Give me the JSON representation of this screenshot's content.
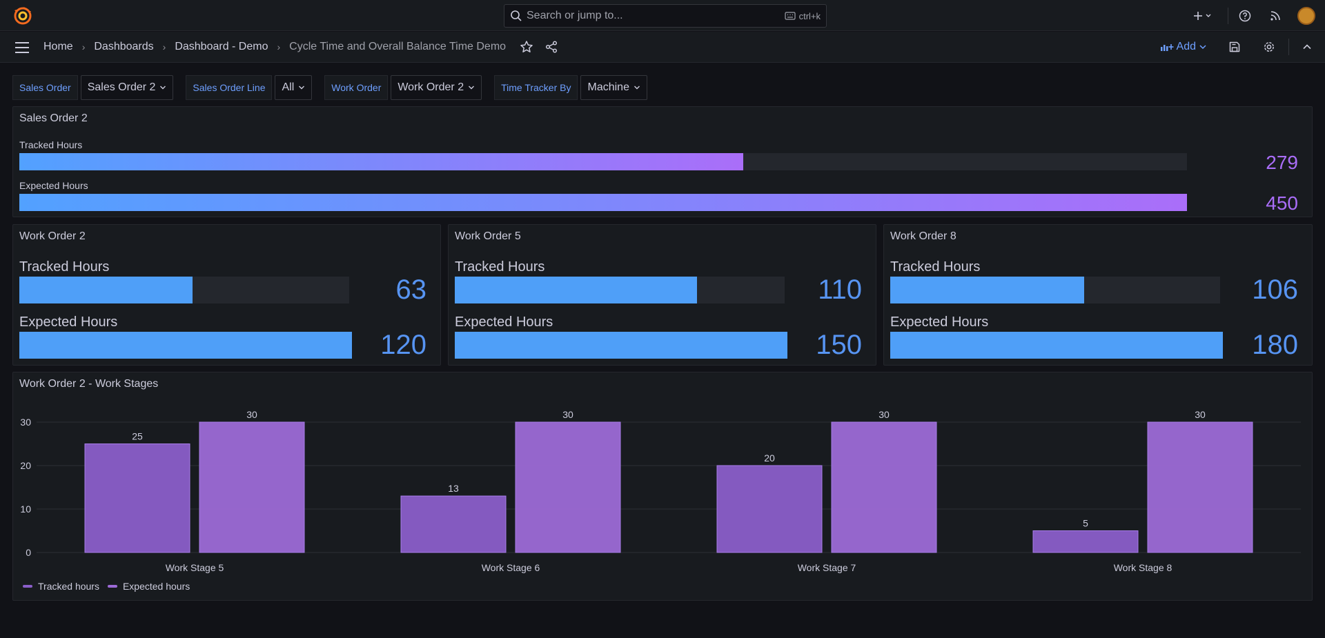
{
  "topbar": {
    "search_placeholder": "Search or jump to...",
    "search_shortcut": "ctrl+k"
  },
  "breadcrumbs": [
    "Home",
    "Dashboards",
    "Dashboard - Demo",
    "Cycle Time and Overall Balance Time Demo"
  ],
  "navbar": {
    "add_label": "Add"
  },
  "variables": [
    {
      "label": "Sales Order",
      "value": "Sales Order 2"
    },
    {
      "label": "Sales Order Line",
      "value": "All"
    },
    {
      "label": "Work Order",
      "value": "Work Order 2"
    },
    {
      "label": "Time Tracker By",
      "value": "Machine"
    }
  ],
  "sales_panel": {
    "title": "Sales Order 2",
    "max": 450,
    "value_color": "#aa6ef9",
    "rows": [
      {
        "label": "Tracked Hours",
        "value": 279
      },
      {
        "label": "Expected Hours",
        "value": 450
      }
    ]
  },
  "work_order_panels": [
    {
      "title": "Work Order 2",
      "max": 120,
      "rows": [
        {
          "label": "Tracked Hours",
          "value": 63
        },
        {
          "label": "Expected Hours",
          "value": 120
        }
      ]
    },
    {
      "title": "Work Order 5",
      "max": 150,
      "rows": [
        {
          "label": "Tracked Hours",
          "value": 110
        },
        {
          "label": "Expected Hours",
          "value": 150
        }
      ]
    },
    {
      "title": "Work Order 8",
      "max": 180,
      "rows": [
        {
          "label": "Tracked Hours",
          "value": 106
        },
        {
          "label": "Expected Hours",
          "value": 180
        }
      ]
    }
  ],
  "colors": {
    "blue": "#4f9ff8",
    "value_blue": "#5794f2",
    "purple_tracked": "#8a5ec9",
    "purple_expected": "#9c6ad6"
  },
  "stages_panel": {
    "title": "Work Order 2 - Work Stages"
  },
  "chart_data": {
    "type": "bar",
    "title": "Work Order 2 - Work Stages",
    "categories": [
      "Work Stage 5",
      "Work Stage 6",
      "Work Stage 7",
      "Work Stage 8"
    ],
    "series": [
      {
        "name": "Tracked hours",
        "values": [
          25,
          13,
          20,
          5
        ],
        "color": "#8a5ec9"
      },
      {
        "name": "Expected hours",
        "values": [
          30,
          30,
          30,
          30
        ],
        "color": "#9c6ad6"
      }
    ],
    "yticks": [
      0,
      10,
      20,
      30
    ],
    "ylim": [
      0,
      30
    ],
    "xlabel": "",
    "ylabel": "",
    "grid": true,
    "legend": "bottom-left"
  }
}
